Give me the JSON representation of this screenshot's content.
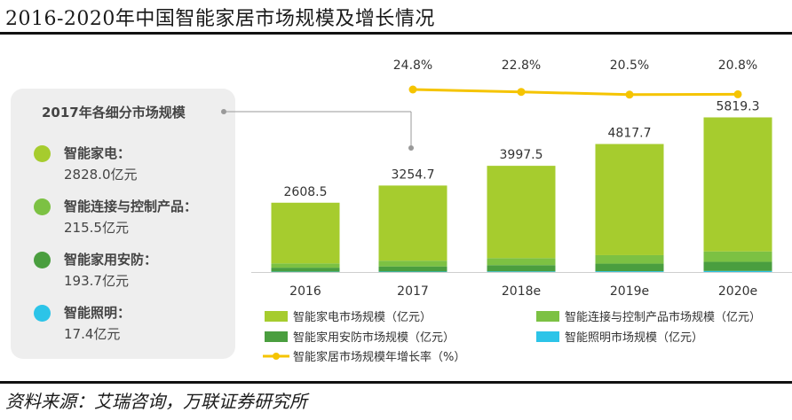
{
  "title": "2016-2020年中国智能家居市场规模及增长情况",
  "source": "资料来源：艾瑞咨询，万联证券研究所",
  "panel": {
    "title": "2017年各细分市场规模",
    "items": [
      {
        "name": "智能家电：",
        "value": "2828.0亿元",
        "color": "#a6cc2e"
      },
      {
        "name": "智能连接与控制产品：",
        "value": "215.5亿元",
        "color": "#7cc143"
      },
      {
        "name": "智能家用安防：",
        "value": "193.7亿元",
        "color": "#4a9e3f"
      },
      {
        "name": "智能照明：",
        "value": "17.4亿元",
        "color": "#2cc4e8"
      }
    ]
  },
  "chart_data": {
    "type": "bar",
    "stacked": true,
    "categories": [
      "2016",
      "2017",
      "2018e",
      "2019e",
      "2020e"
    ],
    "totals": [
      2608.5,
      3254.7,
      3997.5,
      4817.7,
      5819.3
    ],
    "total_labels": [
      "2608.5",
      "3254.7",
      "3997.5",
      "4817.7",
      "5819.3"
    ],
    "series": [
      {
        "name": "智能照明市场规模（亿元）",
        "color": "#2cc4e8",
        "values": [
          13,
          17.4,
          24,
          30,
          40
        ]
      },
      {
        "name": "智能家用安防市场规模（亿元）",
        "color": "#4a9e3f",
        "values": [
          150,
          193.7,
          235,
          285,
          345
        ]
      },
      {
        "name": "智能连接与控制产品市场规模（亿元）",
        "color": "#7cc143",
        "values": [
          160,
          215.5,
          265,
          320,
          390
        ]
      },
      {
        "name": "智能家电市场规模（亿元）",
        "color": "#a6cc2e",
        "values": [
          2285.5,
          2828.0,
          3473.5,
          4182.7,
          5044.3
        ]
      }
    ],
    "growth": {
      "name": "智能家居市场规模年增长率（%）",
      "color": "#f5c400",
      "values": [
        24.8,
        22.8,
        20.5,
        20.8
      ],
      "labels": [
        "24.8%",
        "22.8%",
        "20.5%",
        "20.8%"
      ]
    },
    "ylim": [
      0,
      6500
    ]
  }
}
